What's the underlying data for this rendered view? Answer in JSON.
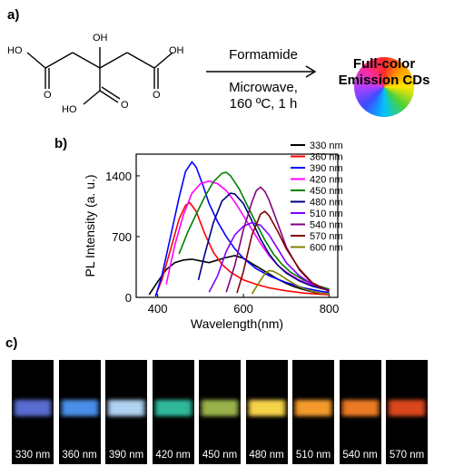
{
  "panel_a": {
    "label": "a)",
    "structure_labels": [
      "OH",
      "HO",
      "OH",
      "O",
      "O",
      "HO",
      "O"
    ],
    "arrow_top": "Formamide",
    "arrow_bottom_1": "Microwave,",
    "arrow_bottom_2": "160 ºC, 1 h",
    "product_1": "Full-color",
    "product_2": "Emission CDs"
  },
  "panel_b": {
    "label": "b)"
  },
  "panel_c": {
    "label": "c)",
    "strips": [
      {
        "label": "330 nm",
        "color": "#5a6cd0"
      },
      {
        "label": "360 nm",
        "color": "#4a8ee8"
      },
      {
        "label": "390 nm",
        "color": "#aed2f0"
      },
      {
        "label": "420 nm",
        "color": "#2fb89a"
      },
      {
        "label": "450 nm",
        "color": "#9ab24a"
      },
      {
        "label": "480 nm",
        "color": "#f6d24a"
      },
      {
        "label": "510 nm",
        "color": "#f39a2a"
      },
      {
        "label": "540 nm",
        "color": "#ea7a24"
      },
      {
        "label": "570 nm",
        "color": "#d8471e"
      }
    ]
  },
  "chart_data": {
    "type": "line",
    "title": "",
    "xlabel": "Wavelength(nm)",
    "ylabel": "PL Intensity (a. u.)",
    "xlim": [
      350,
      820
    ],
    "ylim": [
      0,
      1650
    ],
    "xticks": [
      400,
      600,
      800
    ],
    "yticks": [
      0,
      700,
      1400
    ],
    "grid": false,
    "legend_position": "top-right",
    "series": [
      {
        "name": "330 nm",
        "color": "#000000",
        "x": [
          380,
          400,
          420,
          440,
          460,
          480,
          500,
          520,
          540,
          560,
          580,
          600,
          620,
          640,
          660,
          680,
          700,
          720,
          740,
          760,
          780,
          800
        ],
        "y": [
          30,
          180,
          320,
          400,
          430,
          440,
          420,
          400,
          430,
          460,
          480,
          450,
          390,
          330,
          270,
          210,
          160,
          120,
          90,
          65,
          45,
          35
        ]
      },
      {
        "name": "360 nm",
        "color": "#ff0000",
        "x": [
          395,
          410,
          430,
          450,
          465,
          475,
          490,
          510,
          530,
          550,
          570,
          600,
          630,
          660,
          700,
          740,
          780,
          800
        ],
        "y": [
          20,
          200,
          550,
          900,
          1060,
          1090,
          990,
          730,
          520,
          380,
          290,
          200,
          150,
          110,
          75,
          50,
          35,
          30
        ]
      },
      {
        "name": "390 nm",
        "color": "#0000ff",
        "x": [
          395,
          410,
          430,
          450,
          465,
          480,
          490,
          505,
          520,
          540,
          560,
          580,
          600,
          630,
          660,
          700,
          740,
          780,
          800
        ],
        "y": [
          10,
          250,
          700,
          1150,
          1450,
          1560,
          1500,
          1300,
          1080,
          870,
          700,
          560,
          450,
          330,
          250,
          170,
          110,
          70,
          55
        ]
      },
      {
        "name": "420 nm",
        "color": "#ff00ff",
        "x": [
          420,
          440,
          460,
          480,
          500,
          520,
          540,
          560,
          580,
          600,
          620,
          640,
          660,
          680,
          700,
          730,
          760,
          800
        ],
        "y": [
          150,
          600,
          950,
          1200,
          1310,
          1340,
          1310,
          1230,
          1100,
          940,
          780,
          620,
          480,
          370,
          290,
          200,
          140,
          85
        ]
      },
      {
        "name": "450 nm",
        "color": "#008000",
        "x": [
          450,
          470,
          490,
          510,
          530,
          550,
          560,
          570,
          590,
          610,
          630,
          650,
          670,
          690,
          710,
          740,
          770,
          800
        ],
        "y": [
          500,
          750,
          960,
          1160,
          1330,
          1430,
          1440,
          1400,
          1250,
          1050,
          850,
          660,
          500,
          380,
          290,
          200,
          140,
          95
        ]
      },
      {
        "name": "480 nm",
        "color": "#000080",
        "x": [
          495,
          510,
          530,
          550,
          570,
          580,
          600,
          620,
          640,
          660,
          680,
          700,
          730,
          760,
          800
        ],
        "y": [
          200,
          500,
          860,
          1110,
          1200,
          1190,
          1080,
          880,
          670,
          500,
          370,
          280,
          190,
          130,
          80
        ]
      },
      {
        "name": "510 nm",
        "color": "#7f00ff",
        "x": [
          520,
          540,
          560,
          580,
          600,
          620,
          640,
          660,
          680,
          700,
          730,
          760,
          800
        ],
        "y": [
          60,
          250,
          530,
          720,
          820,
          860,
          830,
          720,
          560,
          400,
          250,
          150,
          80
        ]
      },
      {
        "name": "540 nm",
        "color": "#800080",
        "x": [
          560,
          580,
          600,
          620,
          630,
          640,
          650,
          660,
          680,
          700,
          730,
          760,
          800
        ],
        "y": [
          60,
          370,
          780,
          1100,
          1230,
          1270,
          1220,
          1120,
          850,
          580,
          320,
          160,
          70
        ]
      },
      {
        "name": "570 nm",
        "color": "#800000",
        "x": [
          585,
          600,
          620,
          640,
          650,
          660,
          680,
          700,
          730,
          760,
          800
        ],
        "y": [
          50,
          300,
          720,
          960,
          990,
          940,
          760,
          560,
          330,
          170,
          70
        ]
      },
      {
        "name": "600 nm",
        "color": "#808000",
        "x": [
          620,
          635,
          650,
          660,
          670,
          685,
          700,
          720,
          740,
          760,
          780,
          800
        ],
        "y": [
          40,
          160,
          270,
          310,
          300,
          260,
          210,
          150,
          100,
          70,
          50,
          40
        ]
      }
    ]
  }
}
